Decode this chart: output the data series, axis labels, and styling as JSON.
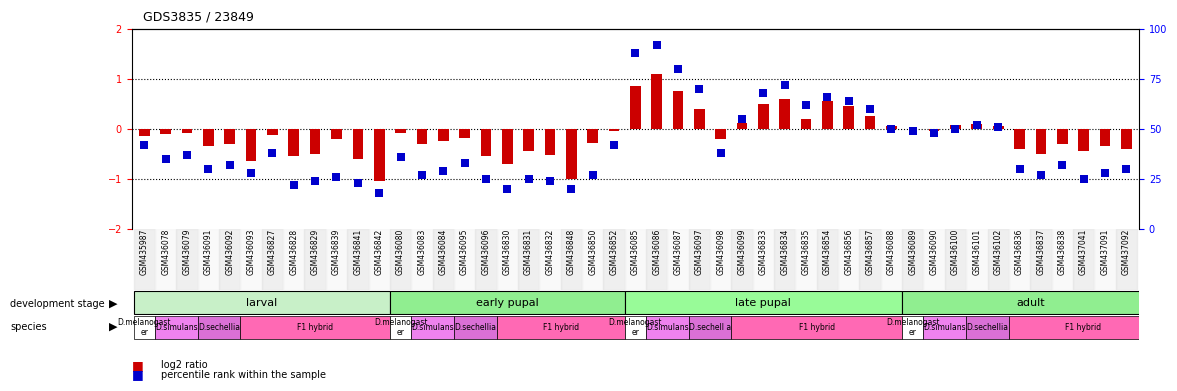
{
  "title": "GDS3835 / 23849",
  "gsm_labels": [
    "GSM435987",
    "GSM436078",
    "GSM436079",
    "GSM436091",
    "GSM436092",
    "GSM436093",
    "GSM436827",
    "GSM436828",
    "GSM436829",
    "GSM436839",
    "GSM436841",
    "GSM436842",
    "GSM436080",
    "GSM436083",
    "GSM436084",
    "GSM436095",
    "GSM436096",
    "GSM436830",
    "GSM436831",
    "GSM436832",
    "GSM436848",
    "GSM436850",
    "GSM436852",
    "GSM436085",
    "GSM436086",
    "GSM436087",
    "GSM436097",
    "GSM436098",
    "GSM436099",
    "GSM436833",
    "GSM436834",
    "GSM436835",
    "GSM436854",
    "GSM436856",
    "GSM436857",
    "GSM436088",
    "GSM436089",
    "GSM436090",
    "GSM436100",
    "GSM436101",
    "GSM436102",
    "GSM436836",
    "GSM436837",
    "GSM436838",
    "GSM437041",
    "GSM437091",
    "GSM437092"
  ],
  "log2_ratio": [
    -0.15,
    -0.1,
    -0.08,
    -0.35,
    -0.3,
    -0.65,
    -0.12,
    -0.55,
    -0.5,
    -0.2,
    -0.6,
    -1.05,
    -0.08,
    -0.3,
    -0.25,
    -0.18,
    -0.55,
    -0.7,
    -0.45,
    -0.52,
    -1.0,
    -0.28,
    -0.05,
    0.85,
    1.1,
    0.75,
    0.4,
    -0.2,
    0.12,
    0.5,
    0.6,
    0.2,
    0.55,
    0.45,
    0.25,
    0.05,
    0.0,
    -0.05,
    0.08,
    0.1,
    0.05,
    -0.4,
    -0.5,
    -0.3,
    -0.45,
    -0.35,
    -0.4
  ],
  "percentile": [
    42,
    35,
    37,
    30,
    32,
    28,
    38,
    22,
    24,
    26,
    23,
    18,
    36,
    27,
    29,
    33,
    25,
    20,
    25,
    24,
    20,
    27,
    42,
    88,
    92,
    80,
    70,
    38,
    55,
    68,
    72,
    62,
    66,
    64,
    60,
    50,
    49,
    48,
    50,
    52,
    51,
    30,
    27,
    32,
    25,
    28,
    30
  ],
  "ylim": [
    -2,
    2
  ],
  "y2lim": [
    0,
    100
  ],
  "yticks_left": [
    -2,
    -1,
    0,
    1,
    2
  ],
  "yticks_right": [
    0,
    25,
    50,
    75,
    100
  ],
  "hline_vals": [
    -1,
    0,
    1
  ],
  "dev_stages": [
    {
      "label": "larval",
      "start": 0,
      "end": 11,
      "color": "#c8f0c8"
    },
    {
      "label": "early pupal",
      "start": 12,
      "end": 22,
      "color": "#90ee90"
    },
    {
      "label": "late pupal",
      "start": 23,
      "end": 35,
      "color": "#98fb98"
    },
    {
      "label": "adult",
      "start": 36,
      "end": 47,
      "color": "#90ee90"
    }
  ],
  "species_blocks": [
    {
      "label": "D.melanogast\ner",
      "start": 0,
      "end": 0,
      "color": "#ffffff"
    },
    {
      "label": "D.simulans",
      "start": 1,
      "end": 2,
      "color": "#ee82ee"
    },
    {
      "label": "D.sechellia",
      "start": 3,
      "end": 4,
      "color": "#da70d6"
    },
    {
      "label": "F1 hybrid",
      "start": 5,
      "end": 11,
      "color": "#ff69b4"
    },
    {
      "label": "D.melanogast\ner",
      "start": 12,
      "end": 12,
      "color": "#ffffff"
    },
    {
      "label": "D.simulans",
      "start": 13,
      "end": 14,
      "color": "#ee82ee"
    },
    {
      "label": "D.sechellia",
      "start": 15,
      "end": 16,
      "color": "#da70d6"
    },
    {
      "label": "F1 hybrid",
      "start": 17,
      "end": 22,
      "color": "#ff69b4"
    },
    {
      "label": "D.melanogast\ner",
      "start": 23,
      "end": 23,
      "color": "#ffffff"
    },
    {
      "label": "D.simulans",
      "start": 24,
      "end": 25,
      "color": "#ee82ee"
    },
    {
      "label": "D.sechell a",
      "start": 26,
      "end": 27,
      "color": "#da70d6"
    },
    {
      "label": "F1 hybrid",
      "start": 28,
      "end": 35,
      "color": "#ff69b4"
    },
    {
      "label": "D.melanogast\ner",
      "start": 36,
      "end": 36,
      "color": "#ffffff"
    },
    {
      "label": "D.simulans",
      "start": 37,
      "end": 38,
      "color": "#ee82ee"
    },
    {
      "label": "D.sechellia",
      "start": 39,
      "end": 40,
      "color": "#da70d6"
    },
    {
      "label": "F1 hybrid",
      "start": 41,
      "end": 47,
      "color": "#ff69b4"
    }
  ],
  "bar_color": "#cc0000",
  "dot_color": "#0000cc",
  "bar_width": 0.5,
  "dot_size": 40,
  "legend_items": [
    {
      "label": "log2 ratio",
      "color": "#cc0000",
      "marker": "s"
    },
    {
      "label": "percentile rank within the sample",
      "color": "#0000cc",
      "marker": "s"
    }
  ]
}
